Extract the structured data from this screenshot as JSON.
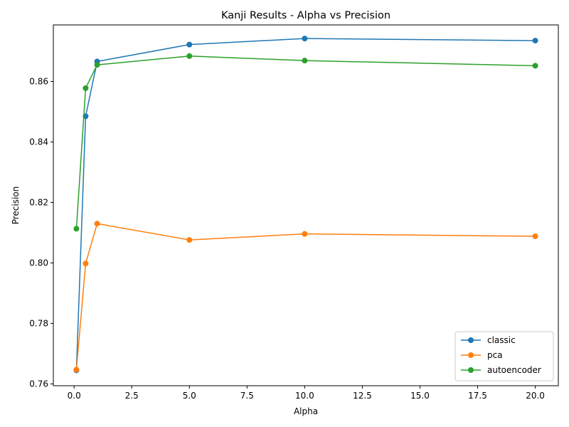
{
  "chart_data": {
    "type": "line",
    "title": "Kanji Results - Alpha vs Precision",
    "xlabel": "Alpha",
    "ylabel": "Precision",
    "xlim": [
      -0.9,
      21.0
    ],
    "ylim": [
      0.7594,
      0.8787
    ],
    "x": [
      0.1,
      0.5,
      1.0,
      5.0,
      10.0,
      20.0
    ],
    "xticks": [
      0.0,
      2.5,
      5.0,
      7.5,
      10.0,
      12.5,
      15.0,
      17.5,
      20.0
    ],
    "xtick_labels": [
      "0.0",
      "2.5",
      "5.0",
      "7.5",
      "10.0",
      "12.5",
      "15.0",
      "17.5",
      "20.0"
    ],
    "yticks": [
      0.76,
      0.78,
      0.8,
      0.82,
      0.84,
      0.86
    ],
    "ytick_labels": [
      "0.76",
      "0.78",
      "0.80",
      "0.82",
      "0.84",
      "0.86"
    ],
    "grid": false,
    "legend_position": "lower-right",
    "series": [
      {
        "name": "classic",
        "color": "#1f77b4",
        "values": [
          0.7645,
          0.8485,
          0.8666,
          0.8722,
          0.8742,
          0.8735
        ]
      },
      {
        "name": "pca",
        "color": "#ff7f0e",
        "values": [
          0.7647,
          0.7998,
          0.813,
          0.8076,
          0.8096,
          0.8088
        ]
      },
      {
        "name": "autoencoder",
        "color": "#2ca02c",
        "values": [
          0.8113,
          0.8578,
          0.8655,
          0.8684,
          0.8669,
          0.8652
        ]
      }
    ]
  }
}
